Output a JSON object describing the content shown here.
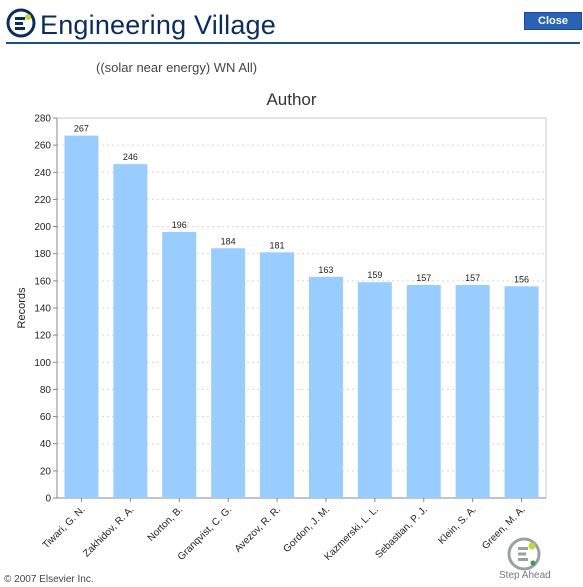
{
  "header": {
    "brand": "Engineering Village",
    "close_label": "Close"
  },
  "query_text": "((solar near energy) WN All)",
  "footer": {
    "copyright": "© 2007 Elsevier Inc.",
    "tagline": "Step Ahead"
  },
  "colors": {
    "bar": "#99ccff",
    "brand_text": "#0b2d5e",
    "brand_rule": "#1b4e8c",
    "close_button": "#2a62b6",
    "logo_yellow": "#c8d63a",
    "logo_green": "#3a9c4d"
  },
  "icons": {
    "brand_logo": "engineering-village-logo-icon",
    "footer_logo": "step-ahead-logo-icon"
  },
  "chart_data": {
    "type": "bar",
    "title": "Author",
    "xlabel": "",
    "ylabel": "Records",
    "ylim": [
      0,
      280
    ],
    "yticks": [
      0,
      20,
      40,
      60,
      80,
      100,
      120,
      140,
      160,
      180,
      200,
      220,
      240,
      260,
      280
    ],
    "grid": true,
    "categories": [
      "Tiwari, G. N.",
      "Zakhidov, R. A.",
      "Norton, B.",
      "Granqvist, C. G.",
      "Avezov, R. R.",
      "Gordon, J. M.",
      "Kazmerski, L. L.",
      "Sebastian, P. J.",
      "Klein, S. A.",
      "Green, M. A."
    ],
    "values": [
      267,
      246,
      196,
      184,
      181,
      163,
      159,
      157,
      157,
      156
    ],
    "value_labels": [
      "267",
      "246",
      "196",
      "184",
      "181",
      "163",
      "159",
      "157",
      "157",
      "156"
    ]
  }
}
